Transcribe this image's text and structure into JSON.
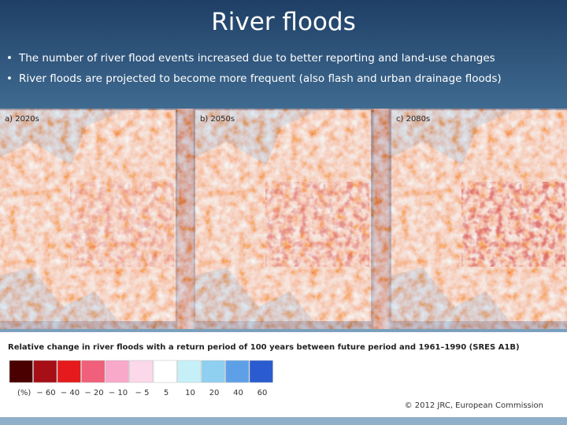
{
  "header": {
    "title": "River floods"
  },
  "bullets": [
    "The number of river flood events increased due to better reporting and land-use changes",
    "River floods are projected to become more frequent (also flash and urban drainage floods)"
  ],
  "maps": [
    {
      "label": "a) 2020s"
    },
    {
      "label": "b) 2050s"
    },
    {
      "label": "c) 2080s"
    }
  ],
  "legend": {
    "title": "Relative change in river floods with a return period of 100 years between future period and 1961–1990 (SRES A1B)",
    "unit": "(%)",
    "labels": [
      "− 60",
      "− 40",
      "− 20",
      "− 10",
      "− 5",
      "5",
      "10",
      "20",
      "40",
      "60"
    ],
    "credit": "© 2012 JRC, European Commission"
  }
}
